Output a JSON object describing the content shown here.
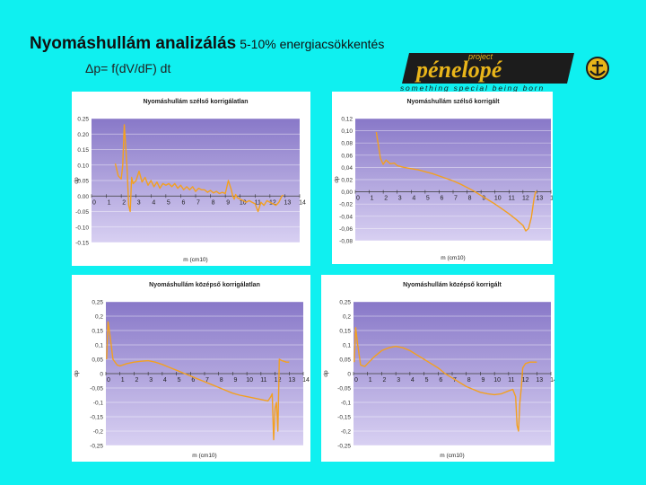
{
  "header": {
    "title": "Nyomáshullám analizálás",
    "subtitle": "5-10% energiacsökkentés",
    "formula": "Δp= f(dV/dF) dt"
  },
  "logo": {
    "top": "project",
    "main": "pénelopé",
    "tagline": "something special being born"
  },
  "colors": {
    "background": "#0ff0f0",
    "plot_top": "#8878c8",
    "plot_bottom": "#d8d0f2",
    "line": "#f3a020",
    "logo_gold": "#e9b51a",
    "logo_dark": "#1c1c1c"
  },
  "chart_data": [
    {
      "type": "line",
      "title": "Nyomáshullám szélső korrigálatlan",
      "xlabel": "m (cm10)",
      "ylabel": "dp",
      "xlim": [
        0,
        14
      ],
      "ylim": [
        -0.15,
        0.25
      ],
      "xticks": [
        "0",
        "1",
        "2",
        "3",
        "4",
        "5",
        "6",
        "7",
        "8",
        "9",
        "10",
        "11",
        "12",
        "13",
        "14"
      ],
      "yticks": [
        "0.25",
        "0.20",
        "0.15",
        "0.10",
        "0.05",
        "0.00",
        "-0.05",
        "-0.10",
        "-0.15"
      ],
      "series": [
        {
          "x": [
            1.6,
            1.8,
            2.0,
            2.1,
            2.2,
            2.3,
            2.4,
            2.5,
            2.6,
            2.7,
            2.8,
            3.0,
            3.2,
            3.4,
            3.6,
            3.8,
            4.0,
            4.2,
            4.4,
            4.6,
            4.8,
            5.0,
            5.2,
            5.4,
            5.6,
            5.8,
            6.0,
            6.2,
            6.4,
            6.6,
            6.8,
            7.0,
            7.2,
            7.4,
            7.6,
            7.8,
            8.0,
            8.2,
            8.4,
            8.6,
            8.8,
            9.0,
            9.2,
            9.4,
            9.5,
            9.6,
            9.7,
            9.8,
            10.0,
            10.2,
            10.4,
            10.6,
            10.8,
            11.0,
            11.2,
            11.4,
            11.6,
            11.8,
            12.0,
            12.2,
            12.4,
            12.6,
            12.8,
            12.9
          ],
          "y": [
            0.105,
            0.065,
            0.055,
            0.1,
            0.23,
            0.16,
            0.08,
            -0.03,
            -0.05,
            0.06,
            0.04,
            0.05,
            0.08,
            0.045,
            0.06,
            0.035,
            0.05,
            0.03,
            0.045,
            0.025,
            0.04,
            0.035,
            0.04,
            0.03,
            0.04,
            0.025,
            0.035,
            0.02,
            0.03,
            0.02,
            0.03,
            0.015,
            0.025,
            0.02,
            0.02,
            0.012,
            0.018,
            0.01,
            0.015,
            0.008,
            0.012,
            0.008,
            0.05,
            0.02,
            0.0,
            -0.01,
            0.005,
            -0.005,
            -0.01,
            -0.015,
            -0.02,
            -0.015,
            -0.02,
            -0.025,
            -0.05,
            -0.02,
            -0.03,
            -0.015,
            -0.02,
            -0.025,
            -0.03,
            -0.02,
            0.0,
            0.003
          ]
        }
      ]
    },
    {
      "type": "line",
      "title": "Nyomáshullám szélső korrigált",
      "xlabel": "m (cm10)",
      "ylabel": "dp",
      "xlim": [
        0,
        14
      ],
      "ylim": [
        -0.08,
        0.12
      ],
      "xticks": [
        "0",
        "1",
        "2",
        "3",
        "4",
        "5",
        "6",
        "7",
        "8",
        "9",
        "10",
        "11",
        "12",
        "13",
        "14"
      ],
      "yticks": [
        "0,12",
        "0,10",
        "0,08",
        "0,06",
        "0,04",
        "0,02",
        "0,00",
        "-0,02",
        "-0,04",
        "-0,06",
        "-0,08"
      ],
      "series": [
        {
          "x": [
            1.5,
            1.8,
            2.0,
            2.2,
            2.5,
            2.8,
            3.0,
            3.5,
            4.0,
            4.5,
            5.0,
            5.5,
            6.0,
            6.5,
            7.0,
            7.5,
            8.0,
            8.5,
            9.0,
            9.5,
            10.0,
            10.5,
            11.0,
            11.5,
            12.0,
            12.2,
            12.4,
            12.6,
            12.8,
            12.9,
            13.0
          ],
          "y": [
            0.098,
            0.055,
            0.045,
            0.052,
            0.046,
            0.047,
            0.043,
            0.04,
            0.038,
            0.036,
            0.033,
            0.03,
            0.026,
            0.022,
            0.018,
            0.013,
            0.007,
            0.001,
            -0.006,
            -0.013,
            -0.02,
            -0.028,
            -0.036,
            -0.045,
            -0.055,
            -0.064,
            -0.06,
            -0.042,
            -0.01,
            0.0,
            0.0
          ]
        }
      ]
    },
    {
      "type": "line",
      "title": "Nyomáshullám középső korrigálatlan",
      "xlabel": "m (cm10)",
      "ylabel": "dp",
      "xlim": [
        0,
        14
      ],
      "ylim": [
        -0.25,
        0.25
      ],
      "xticks": [
        "0",
        "1",
        "2",
        "3",
        "4",
        "5",
        "6",
        "7",
        "8",
        "9",
        "10",
        "11",
        "12",
        "13",
        "14"
      ],
      "yticks": [
        "0,25",
        "0,2",
        "0,15",
        "0,1",
        "0,05",
        "0",
        "-0,05",
        "-0,1",
        "-0,15",
        "-0,2",
        "-0,25"
      ],
      "series": [
        {
          "x": [
            0.05,
            0.15,
            0.3,
            0.5,
            0.8,
            1.0,
            1.5,
            2.0,
            2.5,
            3.0,
            3.5,
            4.0,
            4.5,
            5.0,
            5.5,
            6.0,
            6.5,
            7.0,
            7.5,
            8.0,
            8.5,
            9.0,
            9.5,
            10.0,
            10.5,
            11.0,
            11.5,
            11.7,
            11.8,
            11.9,
            12.0,
            12.1,
            12.2,
            12.3,
            12.5,
            12.8,
            13.0
          ],
          "y": [
            0.05,
            0.18,
            0.13,
            0.05,
            0.03,
            0.027,
            0.035,
            0.04,
            0.043,
            0.045,
            0.04,
            0.032,
            0.022,
            0.012,
            0.002,
            -0.008,
            -0.018,
            -0.028,
            -0.038,
            -0.048,
            -0.058,
            -0.068,
            -0.075,
            -0.08,
            -0.085,
            -0.09,
            -0.095,
            -0.08,
            -0.07,
            -0.23,
            -0.12,
            -0.1,
            -0.2,
            0.05,
            0.045,
            0.04,
            0.04
          ]
        }
      ]
    },
    {
      "type": "line",
      "title": "Nyomáshullám középső korrigált",
      "xlabel": "m (cm10)",
      "ylabel": "dp",
      "xlim": [
        0,
        14
      ],
      "ylim": [
        -0.25,
        0.25
      ],
      "xticks": [
        "0",
        "1",
        "2",
        "3",
        "4",
        "5",
        "6",
        "7",
        "8",
        "9",
        "10",
        "11",
        "12",
        "13",
        "14"
      ],
      "yticks": [
        "0,25",
        "0,2",
        "0,15",
        "0,1",
        "0,05",
        "0",
        "-0,05",
        "-0,1",
        "-0,15",
        "-0,2",
        "-0,25"
      ],
      "series": [
        {
          "x": [
            0.05,
            0.15,
            0.3,
            0.5,
            0.8,
            1.0,
            1.5,
            2.0,
            2.5,
            3.0,
            3.5,
            4.0,
            4.5,
            5.0,
            5.5,
            6.0,
            6.5,
            7.0,
            7.5,
            8.0,
            8.5,
            9.0,
            9.5,
            10.0,
            10.5,
            11.0,
            11.3,
            11.5,
            11.6,
            11.7,
            11.8,
            11.9,
            12.0,
            12.2,
            12.5,
            12.8,
            13.0
          ],
          "y": [
            0.04,
            0.16,
            0.1,
            0.03,
            0.025,
            0.035,
            0.06,
            0.08,
            0.09,
            0.095,
            0.09,
            0.08,
            0.065,
            0.05,
            0.035,
            0.02,
            0.0,
            -0.015,
            -0.03,
            -0.045,
            -0.055,
            -0.065,
            -0.07,
            -0.073,
            -0.07,
            -0.06,
            -0.055,
            -0.08,
            -0.18,
            -0.2,
            -0.1,
            -0.05,
            0.02,
            0.035,
            0.04,
            0.04,
            0.04
          ]
        }
      ]
    }
  ]
}
